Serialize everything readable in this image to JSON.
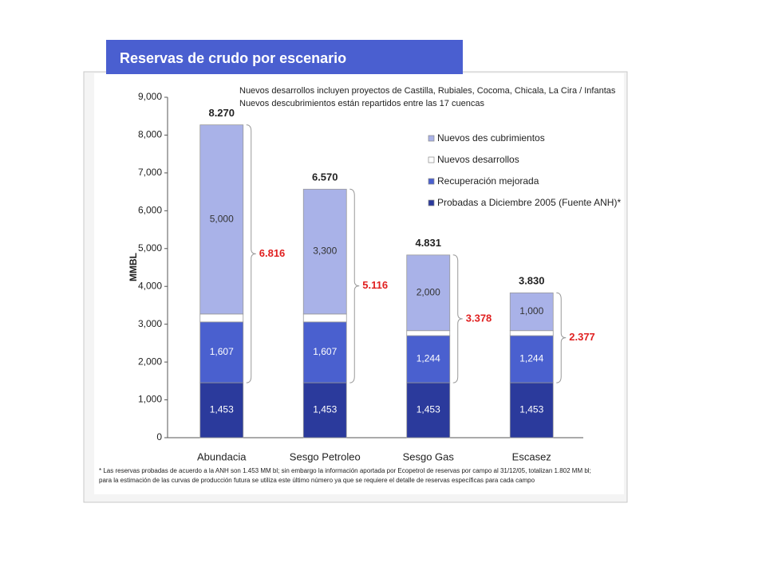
{
  "chart_data": {
    "type": "stacked_bar",
    "title": "Reservas de crudo por escenario",
    "annotations": [
      "Nuevos desarrollos incluyen proyectos de Castilla, Rubiales, Cocoma, Chicala, La Cira / Infantas",
      "Nuevos descubrimientos están repartidos entre las 17 cuencas"
    ],
    "y_label": "MMBL",
    "categories": [
      "Abundacia",
      "Sesgo Petroleo",
      "Sesgo Gas",
      "Escasez"
    ],
    "series": [
      {
        "name": "Probadas a Diciembre 2005 (Fuente ANH)*",
        "color": "#2b3a9c",
        "values": [
          1453,
          1453,
          1453,
          1453
        ],
        "value_labels": [
          "1,453",
          "1,453",
          "1,453",
          "1,453"
        ]
      },
      {
        "name": "Recuperación mejorada",
        "color": "#4a60cf",
        "values": [
          1607,
          1607,
          1244,
          1244
        ],
        "value_labels": [
          "1,607",
          "1,607",
          "1,244",
          "1,244"
        ]
      },
      {
        "name": "Nuevos desarrollos",
        "color": "#ffffff",
        "values": [
          210,
          210,
          133,
          133
        ]
      },
      {
        "name": "Nuevos des cubrimientos",
        "color": "#a9b2e8",
        "values": [
          5000,
          3300,
          2000,
          1000
        ],
        "value_labels": [
          "5,000",
          "3,300",
          "2,000",
          "1,000"
        ]
      }
    ],
    "totals": [
      {
        "value": 8270,
        "label": "8.270"
      },
      {
        "value": 6570,
        "label": "6.570"
      },
      {
        "value": 4831,
        "label": "4.831"
      },
      {
        "value": 3830,
        "label": "3.830"
      }
    ],
    "brace_totals": [
      {
        "value": 6816,
        "label": "6.816"
      },
      {
        "value": 5116,
        "label": "5.116"
      },
      {
        "value": 3378,
        "label": "3.378"
      },
      {
        "value": 2377,
        "label": "2.377"
      }
    ],
    "ylim": [
      0,
      9000
    ],
    "yticks": [
      0,
      {
        "value": 1000,
        "label": "1,000"
      },
      {
        "value": 2000,
        "label": "2,000"
      },
      {
        "value": 3000,
        "label": "3,000"
      },
      {
        "value": 4000,
        "label": "4,000"
      },
      {
        "value": 5000,
        "label": "5,000"
      },
      {
        "value": 6000,
        "label": "6,000"
      },
      {
        "value": 7000,
        "label": "7,000"
      },
      {
        "value": 8000,
        "label": "8,000"
      },
      {
        "value": 9000,
        "label": "9,000"
      }
    ],
    "footnote": [
      "* Las reservas probadas de acuerdo a la ANH son 1.453 MM bl; sin embargo la información aportada por Ecopetrol de reservas por campo al 31/12/05, totalizan 1.802 MM bl;",
      "para la estimación de las curvas de producción futura se utiliza este último número ya que se requiere el detalle de reservas específicas para cada campo"
    ]
  }
}
